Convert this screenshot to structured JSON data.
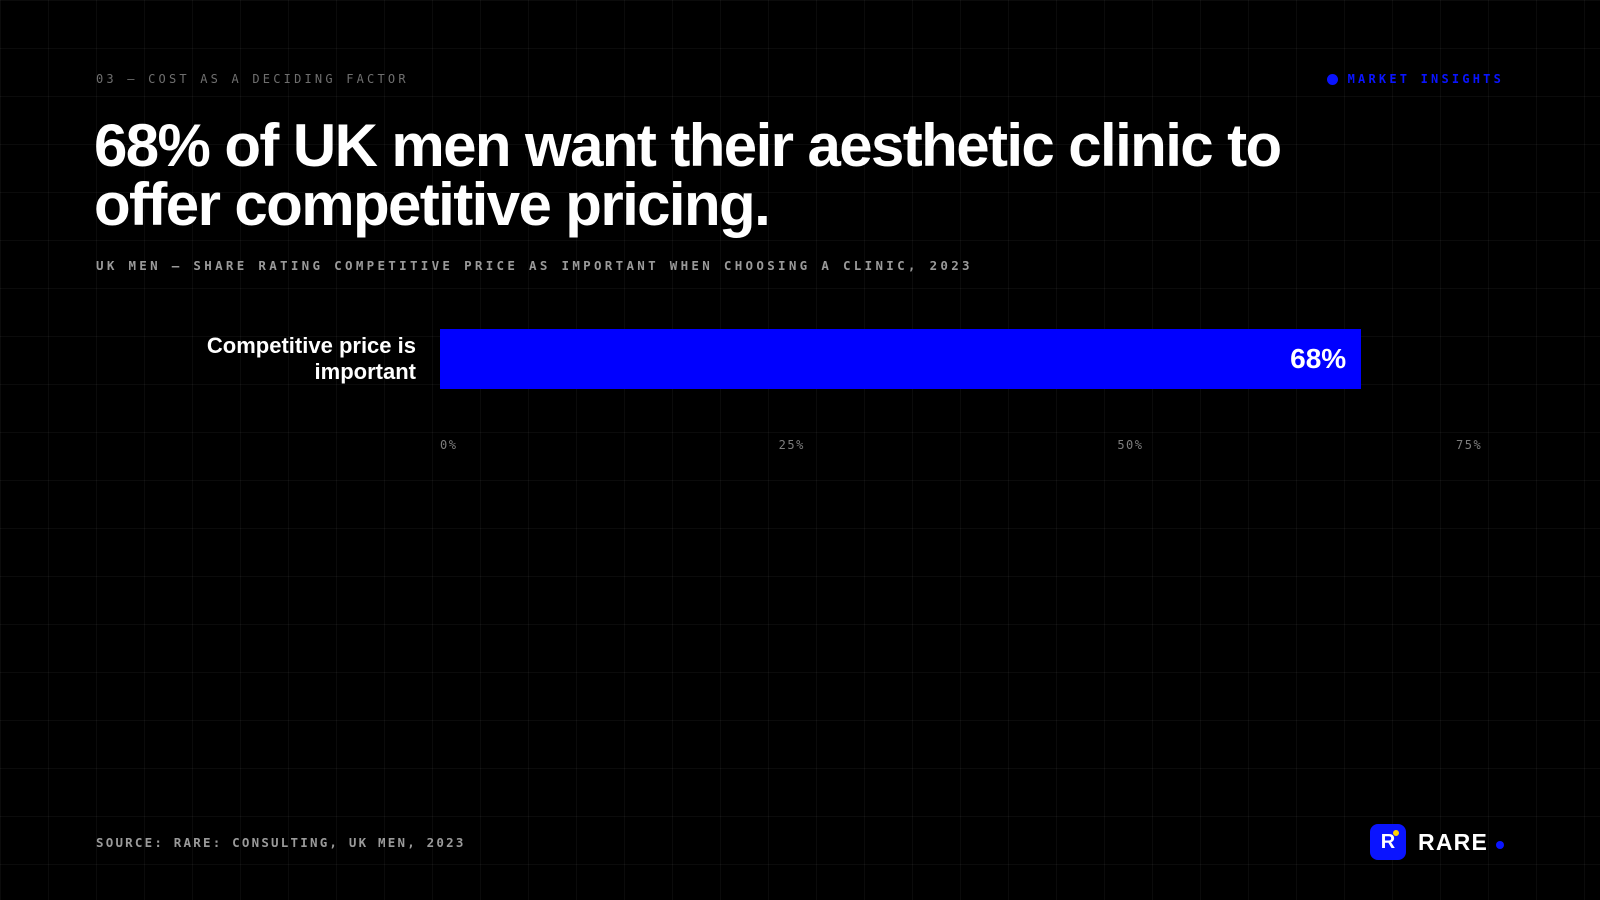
{
  "header": {
    "eyebrow": "03 — COST AS A DECIDING FACTOR",
    "tag": "MARKET INSIGHTS",
    "headline": "68% of UK men want their aesthetic clinic to offer competitive pricing.",
    "subtitle": "UK MEN — SHARE RATING COMPETITIVE PRICE AS IMPORTANT WHEN CHOOSING A CLINIC, 2023"
  },
  "chart_data": {
    "type": "bar",
    "orientation": "horizontal",
    "categories": [
      "Competitive price is important"
    ],
    "values": [
      68
    ],
    "data_labels": [
      "68%"
    ],
    "xlim": [
      0,
      75
    ],
    "x_ticks": [
      0,
      25,
      50,
      75
    ],
    "x_tick_labels": [
      "0%",
      "25%",
      "50%",
      "75%"
    ],
    "grid": true,
    "colors": {
      "bar": "#0000ff"
    }
  },
  "footer": {
    "source": "SOURCE: RARE: CONSULTING, UK MEN, 2023",
    "brand_mark": "R",
    "brand_name": "RARE"
  },
  "colors": {
    "accent": "#0a14ff",
    "background": "#000000",
    "text": "#ffffff"
  }
}
